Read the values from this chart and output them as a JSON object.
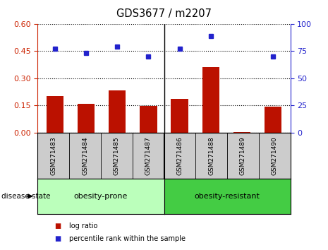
{
  "title": "GDS3677 / m2207",
  "samples": [
    "GSM271483",
    "GSM271484",
    "GSM271485",
    "GSM271487",
    "GSM271486",
    "GSM271488",
    "GSM271489",
    "GSM271490"
  ],
  "log_ratio": [
    0.2,
    0.157,
    0.232,
    0.147,
    0.185,
    0.36,
    0.003,
    0.143
  ],
  "percentile_rank": [
    77,
    73,
    79,
    70,
    77,
    89,
    null,
    70
  ],
  "group1_label": "obesity-prone",
  "group2_label": "obesity-resistant",
  "group1_count": 4,
  "group1_color": "#bbffbb",
  "group2_color": "#44cc44",
  "bar_color": "#bb1100",
  "dot_color": "#2222cc",
  "left_yticks": [
    0,
    0.15,
    0.3,
    0.45,
    0.6
  ],
  "left_ylim": [
    0,
    0.6
  ],
  "right_yticks": [
    0,
    25,
    50,
    75,
    100
  ],
  "right_ylim": [
    0,
    100
  ],
  "disease_state_label": "disease state",
  "legend_bar_label": "log ratio",
  "legend_dot_label": "percentile rank within the sample",
  "left_tick_color": "#cc2200",
  "right_tick_color": "#2222cc",
  "sample_bg_color": "#cccccc",
  "plot_bg_color": "#ffffff"
}
